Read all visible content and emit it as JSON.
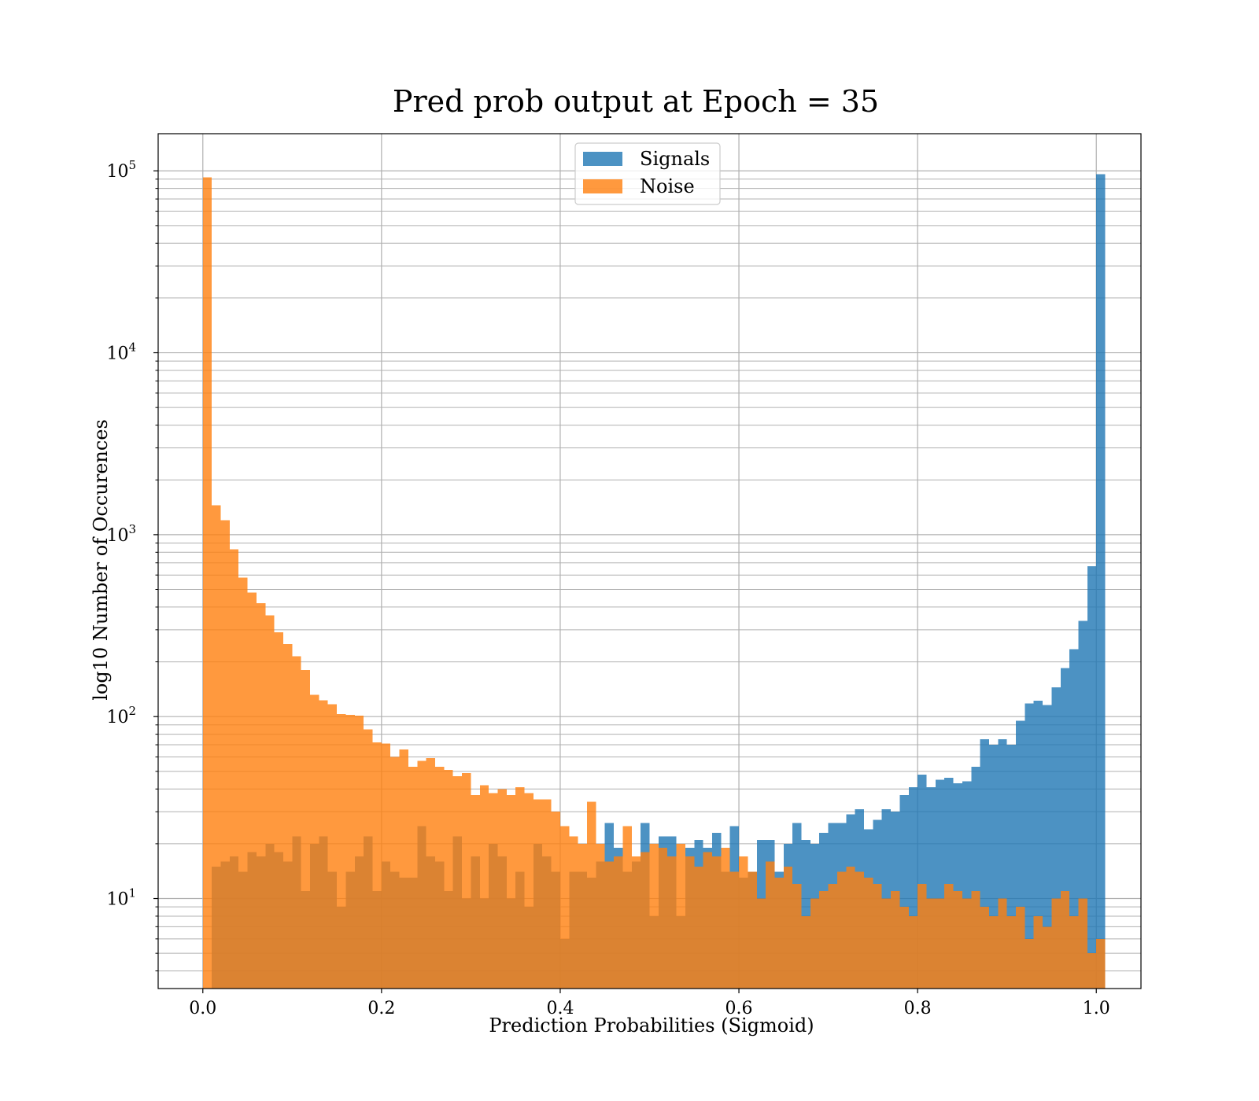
{
  "chart_data": {
    "type": "bar",
    "title": "Pred prob output at Epoch = 35",
    "xlabel": "Prediction Probabilities (Sigmoid)",
    "ylabel": "log10 Number of Occurences",
    "y_scale": "log",
    "xlim": [
      -0.05,
      1.05
    ],
    "ylim": [
      3.2,
      160000
    ],
    "grid": true,
    "legend_position": "top-center",
    "bin_edges_start": 0.0,
    "bin_width": 0.01,
    "x_ticks": [
      "0.0",
      "0.2",
      "0.4",
      "0.6",
      "0.8",
      "1.0"
    ],
    "x_tick_values": [
      0.0,
      0.2,
      0.4,
      0.6,
      0.8,
      1.0
    ],
    "y_ticks": [
      {
        "value": 10,
        "base": "10",
        "exp": "1"
      },
      {
        "value": 100,
        "base": "10",
        "exp": "2"
      },
      {
        "value": 1000,
        "base": "10",
        "exp": "3"
      },
      {
        "value": 10000,
        "base": "10",
        "exp": "4"
      },
      {
        "value": 100000,
        "base": "10",
        "exp": "5"
      }
    ],
    "series": [
      {
        "name": "Signals",
        "color": "#1f77b4",
        "opacity": 0.8,
        "values": [
          0,
          15,
          16,
          17,
          14,
          18,
          17,
          20,
          18,
          16,
          22,
          11,
          20,
          22,
          14,
          9,
          14,
          17,
          22,
          11,
          16,
          14,
          13,
          13,
          25,
          17,
          16,
          11,
          22,
          10,
          17,
          10,
          20,
          17,
          10,
          14,
          9,
          20,
          17,
          14,
          6,
          14,
          14,
          13,
          16,
          26,
          19,
          14,
          16,
          26,
          8,
          22,
          22,
          8,
          19,
          21,
          19,
          23,
          14,
          25,
          13,
          14,
          21,
          21,
          14,
          20,
          26,
          21,
          20,
          23,
          26,
          26,
          29,
          31,
          24,
          27,
          31,
          30,
          37,
          41,
          48,
          41,
          45,
          46,
          43,
          44,
          53,
          75,
          70,
          75,
          70,
          95,
          118,
          122,
          116,
          145,
          185,
          235,
          335,
          670,
          96000
        ]
      },
      {
        "name": "Noise",
        "color": "#ff7f0e",
        "opacity": 0.8,
        "values": [
          92000,
          1450,
          1200,
          830,
          580,
          480,
          420,
          360,
          290,
          250,
          215,
          180,
          132,
          123,
          117,
          103,
          102,
          101,
          85,
          72,
          71,
          60,
          66,
          53,
          57,
          59,
          53,
          51,
          47,
          49,
          37,
          42,
          38,
          40,
          37,
          41,
          38,
          35,
          35,
          30,
          25,
          22,
          20,
          34,
          20,
          16,
          17,
          25,
          17,
          18,
          20,
          19,
          17,
          20,
          17,
          15,
          18,
          17,
          19,
          14,
          17,
          14,
          10,
          16,
          13,
          15,
          12,
          8,
          10,
          11,
          12,
          14,
          15,
          14,
          13,
          12,
          10,
          11,
          9,
          8,
          12,
          10,
          10,
          12,
          11,
          10,
          11,
          9,
          8,
          10,
          8,
          9,
          6,
          8,
          7,
          10,
          11,
          8,
          10,
          5,
          6
        ]
      }
    ]
  }
}
